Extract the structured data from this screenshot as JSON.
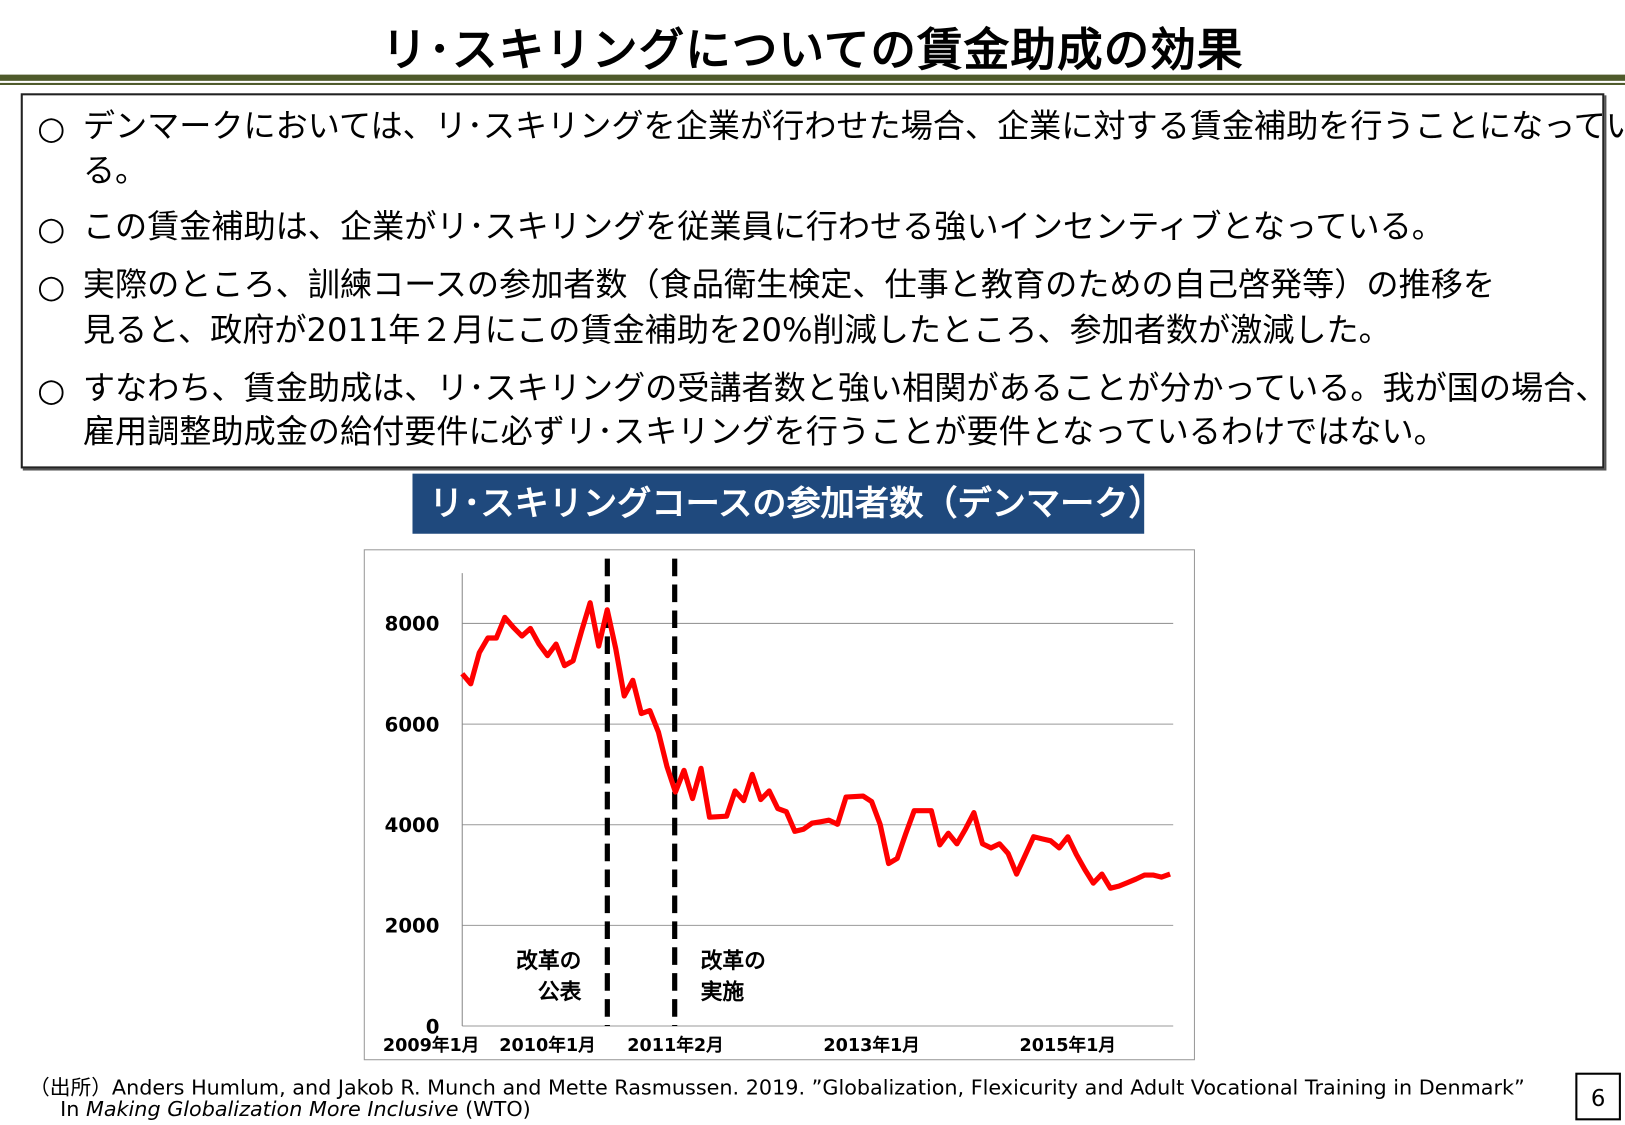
{
  "title": "リ･スキリングについての賃金助成の効果",
  "bullets": [
    [
      "デンマークにおいては、リ･スキリングを企業が行わせた場合、企業に対する賃金補助を行うことになってい",
      "る。"
    ],
    [
      "この賃金補助は、企業がリ･スキリングを従業員に行わせる強いインセンティブとなっている。"
    ],
    [
      "実際のところ、訓練コースの参加者数（食品衛生検定、仕事と教育のための自己啓発等）の推移を",
      "見ると、政府が2011年２月にこの賃金補助を20%削減したところ、参加者数が激減した。"
    ],
    [
      "すなわち、賃金助成は、リ･スキリングの受講者数と強い相関があることが分かっている。我が国の場合、",
      "雇用調整助成金の給付要件に必ずリ･スキリングを行うことが要件となっているわけではない。"
    ]
  ],
  "bullet_mark": "○",
  "chart_title": "リ･スキリングコースの参加者数（デンマーク）",
  "chart_data": {
    "type": "line",
    "color": "#ff0000",
    "categories": [
      "2009年1月",
      null,
      null,
      null,
      null,
      null,
      null,
      null,
      null,
      null,
      "2010年1月",
      null,
      null,
      null,
      null,
      null,
      null,
      null,
      null,
      null,
      null,
      null,
      null,
      null,
      null,
      "2011年2月",
      null,
      null,
      null,
      null,
      null,
      null,
      null,
      null,
      null,
      null,
      null,
      null,
      null,
      null,
      null,
      null,
      null,
      null,
      null,
      null,
      null,
      null,
      "2013年1月",
      null,
      null,
      null,
      null,
      null,
      null,
      null,
      null,
      null,
      null,
      null,
      null,
      null,
      null,
      null,
      null,
      null,
      null,
      null,
      null,
      null,
      null,
      "2015年1月",
      null,
      null,
      null,
      null,
      null,
      null,
      null,
      null,
      null,
      null,
      null,
      null
    ],
    "values": [
      7000,
      6800,
      7420,
      7710,
      7710,
      8120,
      7920,
      7750,
      7900,
      7590,
      7360,
      7590,
      7160,
      7260,
      7850,
      8410,
      7550,
      8270,
      7500,
      6560,
      6870,
      6210,
      6270,
      5840,
      5160,
      4650,
      5080,
      4520,
      5120,
      4150,
      4160,
      4170,
      4670,
      4480,
      5000,
      4500,
      4670,
      4320,
      4260,
      3870,
      3910,
      4030,
      4060,
      4090,
      4010,
      4550,
      4560,
      4570,
      4460,
      4010,
      3230,
      3330,
      3820,
      4280,
      4280,
      4280,
      3600,
      3830,
      3620,
      3910,
      4240,
      3620,
      3540,
      3620,
      3430,
      3020,
      3390,
      3760,
      3720,
      3680,
      3540,
      3760,
      3410,
      3110,
      2840,
      3020,
      2740,
      2780,
      2850,
      2920,
      3000,
      3000,
      2960,
      3020
    ],
    "ylim": [
      0,
      9000
    ],
    "yticks": [
      0,
      2000,
      4000,
      6000,
      8000
    ],
    "grid": true,
    "annotations": [
      [
        "改革の",
        "公表"
      ],
      [
        "改革の",
        "実施"
      ]
    ]
  },
  "source": {
    "lines": [
      [
        "（出所）Anders Humlum, and Jakob R. Munch and Mette Rasmussen. 2019. ”Globalization, Flexicurity and Adult Vocational Training in Denmark”"
      ],
      [
        "In ",
        "Making Globalization More Inclusive",
        " (WTO)"
      ]
    ]
  },
  "page_number": "6"
}
